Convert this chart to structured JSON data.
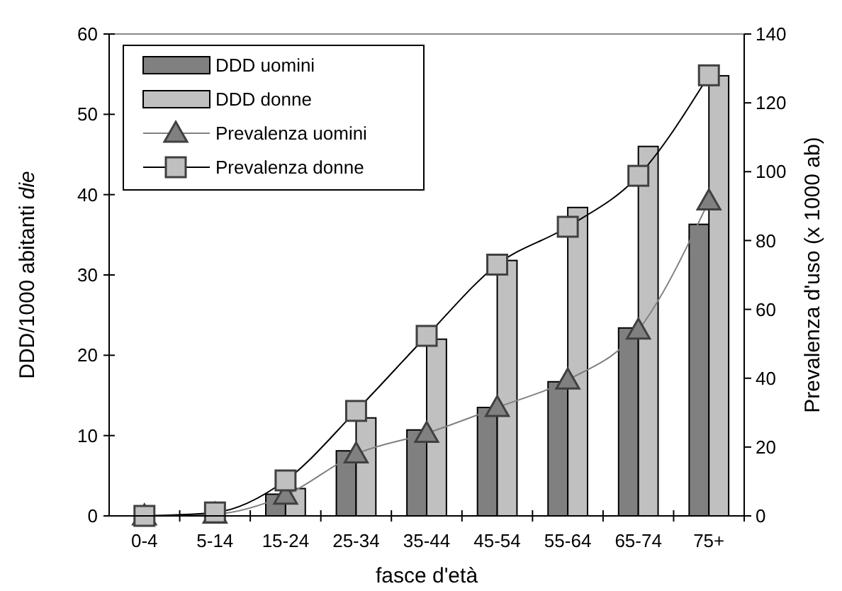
{
  "chart_data": {
    "type": "bar",
    "xlabel": "fasce d'età",
    "ylabel": "DDD/1000 abitanti die",
    "y2label": "Prevalenza d'uso (x 1000 ab)",
    "categories": [
      "0-4",
      "5-14",
      "15-24",
      "25-34",
      "35-44",
      "45-54",
      "55-64",
      "65-74",
      "75+"
    ],
    "series": [
      {
        "name": "DDD uomini",
        "color": "#808080",
        "values": [
          0,
          0,
          2.7,
          8.1,
          10.7,
          13.5,
          16.7,
          23.4,
          36.3
        ]
      },
      {
        "name": "DDD donne",
        "color": "#c0c0c0",
        "values": [
          0,
          0,
          3.4,
          12.2,
          22,
          31.8,
          38.4,
          46,
          54.8
        ]
      },
      {
        "name": "Prevalenza uomini",
        "type": "line",
        "axis": "y2",
        "color": "#808080",
        "marker": "triangle",
        "values": [
          0,
          0.5,
          6,
          18,
          24,
          31.5,
          39.5,
          54,
          91.5
        ]
      },
      {
        "name": "Prevalenza donne",
        "type": "line",
        "axis": "y2",
        "color": "#000000",
        "marker": "square",
        "values": [
          0,
          1,
          10.3,
          30.5,
          52.3,
          73,
          84,
          98.8,
          128
        ]
      }
    ],
    "ylim": [
      0,
      60
    ],
    "yticks": [
      0,
      10,
      20,
      30,
      40,
      50,
      60
    ],
    "y2lim": [
      0,
      140
    ],
    "y2ticks": [
      0,
      20,
      40,
      60,
      80,
      100,
      120,
      140
    ],
    "legend": "top left",
    "grid": false
  }
}
